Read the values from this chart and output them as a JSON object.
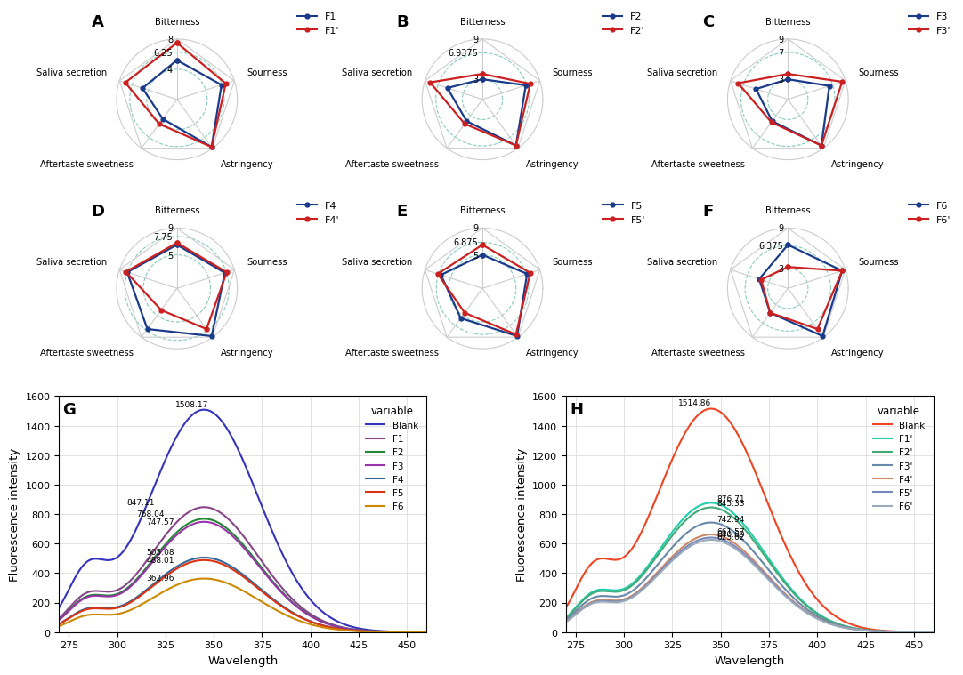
{
  "radar_panels": [
    {
      "label": "A",
      "legend1": "F1",
      "legend2": "F1'",
      "max_val": 8,
      "mid_val": 6.25,
      "min_val": 4,
      "F_vals": [
        5.2,
        6.2,
        7.8,
        3.2,
        4.8
      ],
      "Fp_vals": [
        7.5,
        6.8,
        7.8,
        4.0,
        7.2
      ]
    },
    {
      "label": "B",
      "legend1": "F2",
      "legend2": "F2'",
      "max_val": 9,
      "mid_val": 6.9375,
      "min_val": 3,
      "F_vals": [
        3.0,
        6.8,
        8.5,
        4.0,
        5.5
      ],
      "Fp_vals": [
        3.8,
        7.5,
        8.5,
        4.5,
        8.2
      ]
    },
    {
      "label": "C",
      "legend1": "F3",
      "legend2": "F3'",
      "max_val": 9,
      "mid_val": 7.0,
      "min_val": 3,
      "F_vals": [
        3.0,
        6.5,
        8.5,
        4.0,
        5.0
      ],
      "Fp_vals": [
        3.8,
        8.5,
        8.5,
        4.2,
        7.8
      ]
    },
    {
      "label": "D",
      "legend1": "F4",
      "legend2": "F4'",
      "max_val": 9,
      "mid_val": 7.75,
      "min_val": 5,
      "F_vals": [
        6.5,
        7.5,
        8.8,
        7.5,
        7.8
      ],
      "Fp_vals": [
        6.8,
        7.8,
        7.5,
        4.0,
        8.0
      ]
    },
    {
      "label": "E",
      "legend1": "F5",
      "legend2": "F5'",
      "max_val": 9,
      "mid_val": 6.875,
      "min_val": 5,
      "F_vals": [
        5.0,
        7.0,
        8.8,
        5.5,
        6.5
      ],
      "Fp_vals": [
        6.5,
        7.5,
        8.5,
        4.5,
        7.0
      ]
    },
    {
      "label": "F",
      "legend1": "F6",
      "legend2": "F6'",
      "max_val": 9,
      "mid_val": 6.375,
      "min_val": 3,
      "F_vals": [
        6.5,
        8.5,
        8.8,
        4.5,
        4.5
      ],
      "Fp_vals": [
        3.2,
        8.5,
        7.5,
        4.5,
        4.2
      ]
    }
  ],
  "axes_labels": [
    "Bitterness",
    "Sourness",
    "Astringency",
    "Aftertaste sweetness",
    "Saliva secretion"
  ],
  "G_colors": {
    "Blank": "#3333bb",
    "F1": "#884488",
    "F2": "#228833",
    "F3": "#9933aa",
    "F4": "#336699",
    "F5": "#dd3311",
    "F6": "#cc8800"
  },
  "H_colors": {
    "Blank": "#ee4422",
    "F1p": "#22ccaa",
    "F2p": "#44aa77",
    "F3p": "#6688aa",
    "F4p": "#cc8866",
    "F5p": "#7788bb",
    "F6p": "#99aabb"
  },
  "G_legend_labels": [
    "Blank",
    "F1",
    "F2",
    "F3",
    "F4",
    "F5",
    "F6"
  ],
  "H_legend_labels": [
    "Blank",
    "F1'",
    "F2'",
    "F3'",
    "F4'",
    "F5'",
    "F6'"
  ],
  "G_peaks": {
    "Blank": 1508.17,
    "F1": 847.11,
    "F2": 768.04,
    "F3": 747.57,
    "F4": 505.08,
    "F5": 488.01,
    "F6": 362.96
  },
  "H_peaks": {
    "Blank": 1514.86,
    "F1p": 876.71,
    "F2p": 845.33,
    "F3p": 742.94,
    "F4p": 661.57,
    "F5p": 640.69,
    "F6p": 625.62
  }
}
